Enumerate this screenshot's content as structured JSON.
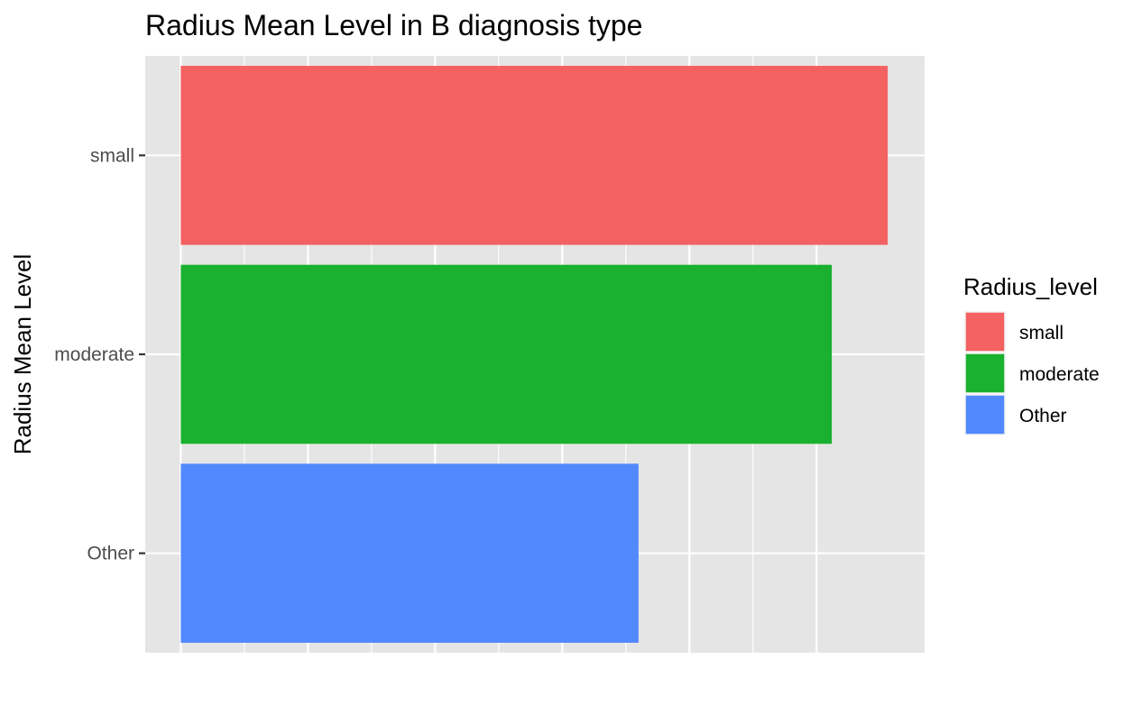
{
  "chart_data": {
    "type": "bar",
    "orientation": "horizontal",
    "title": "Radius Mean Level in B diagnosis type",
    "ylabel": "Radius Mean Level",
    "xlabel": "",
    "x_tick_labels_visible": false,
    "categories": [
      "small",
      "moderate",
      "Other"
    ],
    "values": [
      5.56,
      5.12,
      3.6
    ],
    "xlim": [
      -0.28,
      5.85
    ],
    "x_gridlines": [
      0,
      1,
      2,
      3,
      4,
      5
    ],
    "colors": [
      "#F46161",
      "#19B12F",
      "#5289FE"
    ],
    "grid": true,
    "legend": {
      "title": "Radius_level",
      "position": "right",
      "entries": [
        "small",
        "moderate",
        "Other"
      ]
    },
    "panel_background": "#E5E5E5"
  }
}
